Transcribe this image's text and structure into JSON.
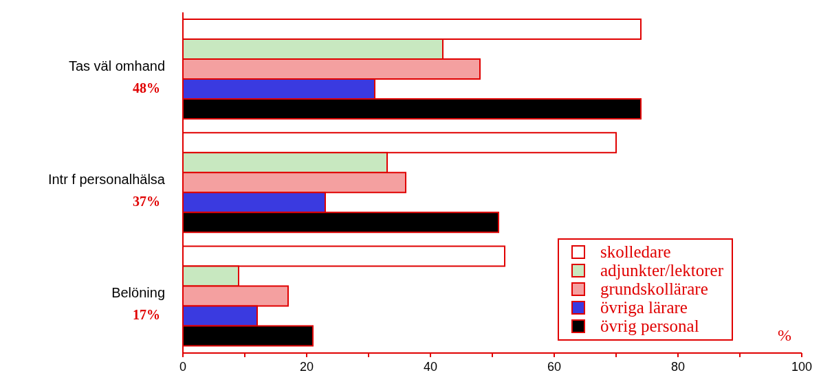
{
  "chart_data": {
    "type": "bar",
    "orientation": "horizontal",
    "xlabel": "%",
    "categories": [
      "Tas väl omhand",
      "Intr f personalhälsa",
      "Belöning"
    ],
    "series": [
      {
        "name": "skolledare",
        "color": "#ffffff",
        "values": [
          74,
          70,
          52
        ]
      },
      {
        "name": "adjunkter/lektorer",
        "color": "#c8e8c0",
        "values": [
          42,
          33,
          9
        ]
      },
      {
        "name": "grundskollärare",
        "color": "#f4a0a0",
        "values": [
          48,
          36,
          17
        ]
      },
      {
        "name": "övriga lärare",
        "color": "#3a3ae0",
        "values": [
          31,
          23,
          12
        ]
      },
      {
        "name": "övrig personal",
        "color": "#000000",
        "values": [
          74,
          51,
          21
        ]
      }
    ],
    "xlim": [
      0,
      100
    ],
    "xticks": [
      0,
      {
        "value": 10,
        "label": null
      },
      20,
      {
        "value": 30,
        "label": null
      },
      40,
      {
        "value": 50,
        "label": null
      },
      60,
      {
        "value": 70,
        "label": null
      },
      80,
      {
        "value": 90,
        "label": null
      },
      100
    ],
    "annotations": [
      "48%",
      "37%",
      "17%"
    ],
    "legend": "bottom right"
  }
}
